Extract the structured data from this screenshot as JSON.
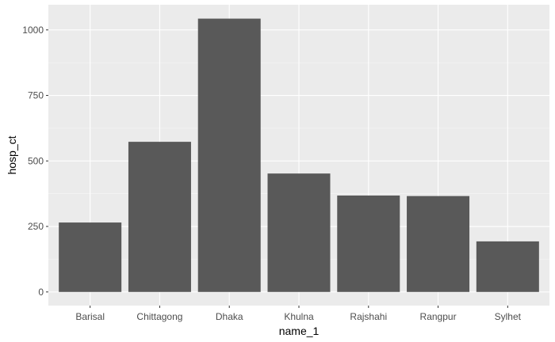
{
  "chart_data": {
    "type": "bar",
    "categories": [
      "Barisal",
      "Chittagong",
      "Dhaka",
      "Khulna",
      "Rajshahi",
      "Rangpur",
      "Sylhet"
    ],
    "values": [
      265,
      573,
      1043,
      452,
      368,
      366,
      193
    ],
    "xlabel": "name_1",
    "ylabel": "hosp_ct",
    "ylim": [
      -52,
      1096
    ],
    "yticks": [
      0,
      250,
      500,
      750,
      1000
    ],
    "grid": true,
    "colors": {
      "bar": "#595959",
      "panel": "#ebebeb",
      "grid_major": "#ffffff",
      "grid_minor": "#f5f5f5"
    }
  }
}
